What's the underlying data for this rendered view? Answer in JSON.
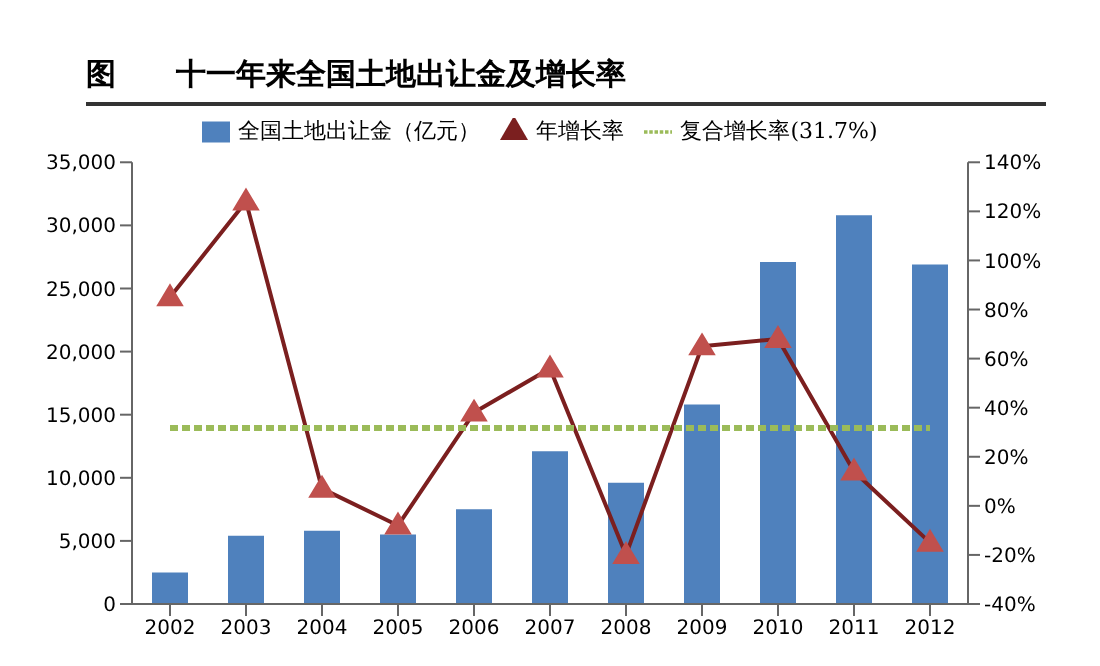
{
  "chart_data": {
    "type": "bar",
    "title": "图　　十一年来全国土地出让金及增长率",
    "categories": [
      "2002",
      "2003",
      "2004",
      "2005",
      "2006",
      "2007",
      "2008",
      "2009",
      "2010",
      "2011",
      "2012"
    ],
    "series": [
      {
        "name": "全国土地出让金（亿元）",
        "color": "#4f81bd",
        "values": [
          2500,
          5400,
          5800,
          5500,
          7500,
          12100,
          9600,
          15800,
          27100,
          30800,
          26900
        ]
      },
      {
        "name": "年增长率",
        "type": "line",
        "axis": "y2",
        "color": "#7b1f1f",
        "marker": "triangle",
        "line_style": "solid",
        "values": [
          85,
          124,
          7,
          -8,
          38,
          56,
          -20,
          65,
          68,
          14,
          -15
        ]
      },
      {
        "name": "复合增长率(31.7%)",
        "type": "line",
        "axis": "y2",
        "color": "#9bbb59",
        "marker": "none",
        "line_style": "dashed",
        "values": [
          31.7,
          31.7,
          31.7,
          31.7,
          31.7,
          31.7,
          31.7,
          31.7,
          31.7,
          31.7,
          31.7
        ]
      }
    ],
    "ylim": [
      0,
      35000
    ],
    "yticks": [
      {
        "value": 0,
        "label": "0"
      },
      {
        "value": 5000,
        "label": "5,000"
      },
      {
        "value": 10000,
        "label": "10,000"
      },
      {
        "value": 15000,
        "label": "15,000"
      },
      {
        "value": 20000,
        "label": "20,000"
      },
      {
        "value": 25000,
        "label": "25,000"
      },
      {
        "value": 30000,
        "label": "30,000"
      },
      {
        "value": 35000,
        "label": "35,000"
      }
    ],
    "y2lim": [
      -40,
      140
    ],
    "y2ticks": [
      {
        "value": -40,
        "label": "-40%"
      },
      {
        "value": -20,
        "label": "-20%"
      },
      {
        "value": 0,
        "label": "0%"
      },
      {
        "value": 20,
        "label": "20%"
      },
      {
        "value": 40,
        "label": "40%"
      },
      {
        "value": 60,
        "label": "60%"
      },
      {
        "value": 80,
        "label": "80%"
      },
      {
        "value": 100,
        "label": "100%"
      },
      {
        "value": 120,
        "label": "120%"
      },
      {
        "value": 140,
        "label": "140%"
      }
    ],
    "grid": false,
    "legend": "top"
  }
}
